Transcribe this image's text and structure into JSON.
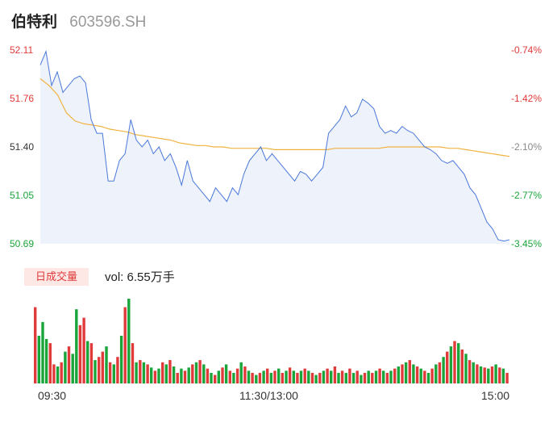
{
  "header": {
    "name": "伯特利",
    "code": "603596.SH"
  },
  "colors": {
    "price": "#4a78d8",
    "avg": "#f0b340",
    "up": "#e03a3a",
    "down": "#1aa53a",
    "area": "#eef2fb"
  },
  "chart_data": [
    {
      "type": "line",
      "y_left_ticks": [
        "52.11",
        "51.76",
        "51.40",
        "51.05",
        "50.69"
      ],
      "y_right_ticks": [
        "-0.74%",
        "-1.42%",
        "-2.10%",
        "-2.77%",
        "-3.45%"
      ],
      "ylim": [
        50.69,
        52.11
      ],
      "x_ticks": [
        "09:30",
        "11:30/13:00",
        "15:00"
      ],
      "series": [
        {
          "values": [
            52.0,
            52.1,
            51.85,
            51.95,
            51.8,
            51.85,
            51.9,
            51.92,
            51.87,
            51.6,
            51.5,
            51.5,
            51.15,
            51.15,
            51.3,
            51.35,
            51.6,
            51.45,
            51.4,
            51.45,
            51.35,
            51.4,
            51.3,
            51.35,
            51.25,
            51.12,
            51.3,
            51.15,
            51.1,
            51.05,
            51.0,
            51.1,
            51.05,
            51.0,
            51.1,
            51.05,
            51.2,
            51.3,
            51.35,
            51.4,
            51.3,
            51.35,
            51.3,
            51.25,
            51.2,
            51.15,
            51.22,
            51.2,
            51.15,
            51.2,
            51.25,
            51.5,
            51.55,
            51.6,
            51.7,
            51.62,
            51.65,
            51.75,
            51.72,
            51.68,
            51.55,
            51.5,
            51.52,
            51.5,
            51.55,
            51.52,
            51.5,
            51.45,
            51.4,
            51.38,
            51.35,
            51.3,
            51.28,
            51.3,
            51.25,
            51.2,
            51.1,
            51.05,
            50.95,
            50.85,
            50.8,
            50.72,
            50.71,
            50.72
          ]
        },
        {
          "values": [
            51.9,
            51.85,
            51.78,
            51.65,
            51.59,
            51.57,
            51.56,
            51.55,
            51.53,
            51.52,
            51.51,
            51.49,
            51.48,
            51.47,
            51.46,
            51.45,
            51.43,
            51.42,
            51.41,
            51.41,
            51.4,
            51.4,
            51.39,
            51.39,
            51.39,
            51.39,
            51.39,
            51.38,
            51.38,
            51.38,
            51.38,
            51.38,
            51.38,
            51.38,
            51.39,
            51.39,
            51.39,
            51.39,
            51.39,
            51.39,
            51.4,
            51.4,
            51.4,
            51.4,
            51.4,
            51.4,
            51.4,
            51.39,
            51.39,
            51.38,
            51.37,
            51.36,
            51.35,
            51.34,
            51.33
          ]
        }
      ]
    },
    {
      "type": "bar",
      "vol_label": "日成交量",
      "vol_text": "vol: 6.55万手",
      "values": [
        72,
        45,
        58,
        42,
        38,
        18,
        16,
        20,
        30,
        35,
        28,
        70,
        55,
        62,
        40,
        38,
        22,
        25,
        30,
        35,
        20,
        18,
        25,
        45,
        72,
        80,
        38,
        20,
        22,
        20,
        18,
        15,
        12,
        14,
        20,
        18,
        22,
        16,
        10,
        14,
        12,
        15,
        18,
        20,
        22,
        18,
        14,
        10,
        8,
        12,
        15,
        18,
        12,
        10,
        14,
        20,
        16,
        12,
        10,
        8,
        10,
        12,
        14,
        10,
        12,
        14,
        10,
        12,
        15,
        12,
        10,
        12,
        14,
        12,
        10,
        8,
        10,
        12,
        14,
        12,
        16,
        10,
        12,
        10,
        14,
        10,
        12,
        8,
        10,
        12,
        10,
        12,
        14,
        12,
        10,
        12,
        14,
        16,
        18,
        20,
        22,
        18,
        16,
        14,
        12,
        10,
        14,
        18,
        20,
        25,
        30,
        35,
        40,
        38,
        32,
        28,
        22,
        20,
        18,
        16,
        15,
        14,
        16,
        18,
        15,
        14,
        10
      ],
      "colors": [
        "up",
        "down",
        "down",
        "down",
        "up",
        "up",
        "down",
        "up",
        "down",
        "up",
        "down",
        "down",
        "up",
        "up",
        "down",
        "up",
        "down",
        "up",
        "up",
        "down",
        "up",
        "down",
        "up",
        "down",
        "up",
        "down",
        "up",
        "down",
        "up",
        "down",
        "up",
        "down",
        "up",
        "down",
        "up",
        "down",
        "up",
        "down",
        "up",
        "down",
        "up",
        "down",
        "up",
        "down",
        "up",
        "down",
        "up",
        "down",
        "up",
        "down",
        "up",
        "down",
        "up",
        "down",
        "up",
        "down",
        "up",
        "down",
        "up",
        "down",
        "up",
        "down",
        "up",
        "down",
        "up",
        "down",
        "up",
        "down",
        "up",
        "down",
        "up",
        "down",
        "up",
        "down",
        "up",
        "down",
        "up",
        "down",
        "up",
        "down",
        "up",
        "down",
        "up",
        "down",
        "up",
        "down",
        "up",
        "down",
        "up",
        "down",
        "up",
        "down",
        "up",
        "down",
        "up",
        "down",
        "up",
        "down",
        "up",
        "down",
        "up",
        "down",
        "up",
        "down",
        "up",
        "down",
        "up",
        "down",
        "up",
        "down",
        "up",
        "down",
        "up",
        "down",
        "up",
        "down",
        "up",
        "down",
        "up",
        "down",
        "up",
        "down",
        "up",
        "down",
        "up",
        "down",
        "up"
      ]
    }
  ]
}
